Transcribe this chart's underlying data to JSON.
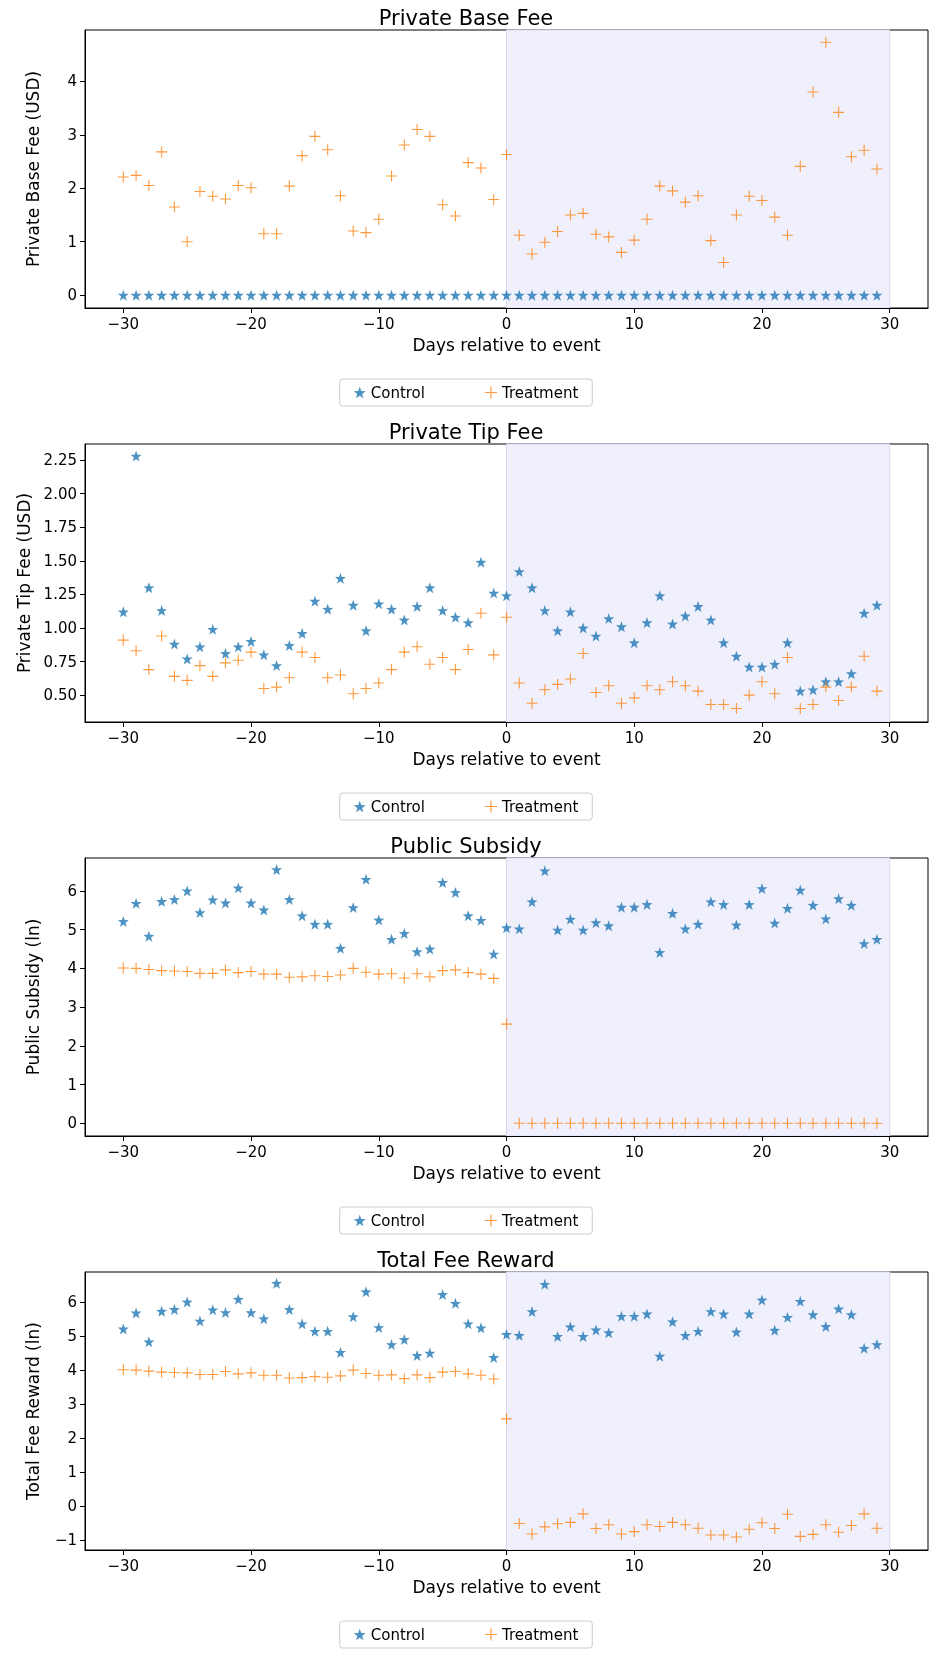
{
  "chart_data": [
    {
      "type": "scatter",
      "title": "Private Base Fee",
      "xlabel": "Days relative to event",
      "ylabel": "Private Base Fee (USD)",
      "xlim": [
        -33,
        33
      ],
      "xticks": [
        {
          "value": -30,
          "label": "−30"
        },
        {
          "value": -20,
          "label": "−20"
        },
        {
          "value": -10,
          "label": "−10"
        },
        0,
        10,
        20,
        30
      ],
      "ylim": [
        -0.24,
        4.96
      ],
      "yticks": [
        0,
        1,
        2,
        3,
        4
      ],
      "grid": false,
      "legend": "bottom",
      "bands": [
        {
          "axis": "x",
          "from": 0,
          "to": 30,
          "color": "#f0f0fc"
        }
      ],
      "x": [
        -30,
        -29,
        -28,
        -27,
        -26,
        -25,
        -24,
        -23,
        -22,
        -21,
        -20,
        -19,
        -18,
        -17,
        -16,
        -15,
        -14,
        -13,
        -12,
        -11,
        -10,
        -9,
        -8,
        -7,
        -6,
        -5,
        -4,
        -3,
        -2,
        -1,
        0,
        1,
        2,
        3,
        4,
        5,
        6,
        7,
        8,
        9,
        10,
        11,
        12,
        13,
        14,
        15,
        16,
        17,
        18,
        19,
        20,
        21,
        22,
        23,
        24,
        25,
        26,
        27,
        28,
        29
      ],
      "series": [
        {
          "name": "Control",
          "color": "#1f77b4",
          "marker": "star",
          "values": [
            0,
            0,
            0,
            0,
            0,
            0,
            0,
            0,
            0,
            0,
            0,
            0,
            0,
            0,
            0,
            0,
            0,
            0,
            0,
            0,
            0,
            0,
            0,
            0,
            0,
            0,
            0,
            0,
            0,
            0,
            0,
            0,
            0,
            0,
            0,
            0,
            0,
            0,
            0,
            0,
            0,
            0,
            0,
            0,
            0,
            0,
            0,
            0,
            0,
            0,
            0,
            0,
            0,
            0,
            0,
            0,
            0,
            0,
            0,
            0
          ]
        },
        {
          "name": "Treatment",
          "color": "#ff7f0e",
          "marker": "cross",
          "values": [
            2.21,
            2.24,
            2.05,
            2.68,
            1.65,
            1.0,
            1.94,
            1.85,
            1.8,
            2.05,
            2.01,
            1.15,
            1.15,
            2.04,
            2.61,
            2.97,
            2.72,
            1.86,
            1.2,
            1.17,
            1.42,
            2.23,
            2.81,
            3.1,
            2.97,
            1.69,
            1.48,
            2.48,
            2.38,
            1.79,
            2.63,
            1.12,
            0.77,
            0.99,
            1.19,
            1.5,
            1.53,
            1.14,
            1.09,
            0.8,
            1.03,
            1.42,
            2.04,
            1.95,
            1.74,
            1.86,
            1.02,
            0.61,
            1.5,
            1.85,
            1.77,
            1.46,
            1.12,
            2.41,
            3.8,
            4.73,
            3.42,
            2.59,
            2.71,
            2.36
          ]
        }
      ]
    },
    {
      "type": "scatter",
      "title": "Private Tip Fee",
      "xlabel": "Days relative to event",
      "ylabel": "Private Tip Fee (USD)",
      "xlim": [
        -33,
        33
      ],
      "xticks": [
        {
          "value": -30,
          "label": "−30"
        },
        {
          "value": -20,
          "label": "−20"
        },
        {
          "value": -10,
          "label": "−10"
        },
        0,
        10,
        20,
        30
      ],
      "ylim": [
        0.3,
        2.37
      ],
      "yticks": [
        {
          "value": 0.5,
          "label": "0.50"
        },
        0.75,
        {
          "value": 1,
          "label": "1.00"
        },
        1.25,
        {
          "value": 1.5,
          "label": "1.50"
        },
        1.75,
        {
          "value": 2,
          "label": "2.00"
        },
        2.25
      ],
      "grid": false,
      "legend": "bottom",
      "bands": [
        {
          "axis": "x",
          "from": 0,
          "to": 30,
          "color": "#f0f0fc"
        }
      ],
      "x": [
        -30,
        -29,
        -28,
        -27,
        -26,
        -25,
        -24,
        -23,
        -22,
        -21,
        -20,
        -19,
        -18,
        -17,
        -16,
        -15,
        -14,
        -13,
        -12,
        -11,
        -10,
        -9,
        -8,
        -7,
        -6,
        -5,
        -4,
        -3,
        -2,
        -1,
        0,
        1,
        2,
        3,
        4,
        5,
        6,
        7,
        8,
        9,
        10,
        11,
        12,
        13,
        14,
        15,
        16,
        17,
        18,
        19,
        20,
        21,
        22,
        23,
        24,
        25,
        26,
        27,
        28,
        29
      ],
      "series": [
        {
          "name": "Control",
          "color": "#1f77b4",
          "marker": "star",
          "values": [
            1.12,
            2.28,
            1.3,
            1.13,
            0.88,
            0.77,
            0.86,
            0.99,
            0.81,
            0.86,
            0.9,
            0.8,
            0.72,
            0.87,
            0.96,
            1.2,
            1.14,
            1.37,
            1.17,
            0.98,
            1.18,
            1.14,
            1.06,
            1.16,
            1.3,
            1.13,
            1.08,
            1.04,
            1.49,
            1.26,
            1.24,
            1.42,
            1.3,
            1.13,
            0.98,
            1.12,
            1.0,
            0.94,
            1.07,
            1.01,
            0.89,
            1.04,
            1.24,
            1.03,
            1.09,
            1.16,
            1.06,
            0.89,
            0.79,
            0.71,
            0.71,
            0.73,
            0.89,
            0.53,
            0.54,
            0.6,
            0.6,
            0.66,
            1.11,
            1.17
          ]
        },
        {
          "name": "Treatment",
          "color": "#ff7f0e",
          "marker": "cross",
          "values": [
            0.91,
            0.83,
            0.69,
            0.94,
            0.64,
            0.61,
            0.72,
            0.64,
            0.74,
            0.76,
            0.82,
            0.55,
            0.56,
            0.63,
            0.82,
            0.78,
            0.63,
            0.65,
            0.51,
            0.55,
            0.59,
            0.69,
            0.82,
            0.86,
            0.73,
            0.78,
            0.69,
            0.84,
            1.11,
            0.8,
            1.08,
            0.59,
            0.44,
            0.54,
            0.58,
            0.62,
            0.81,
            0.52,
            0.57,
            0.44,
            0.48,
            0.57,
            0.54,
            0.6,
            0.57,
            0.53,
            0.43,
            0.43,
            0.4,
            0.5,
            0.6,
            0.51,
            0.78,
            0.4,
            0.43,
            0.56,
            0.46,
            0.56,
            0.79,
            0.53
          ]
        }
      ]
    },
    {
      "type": "scatter",
      "title": "Public Subsidy",
      "xlabel": "Days relative to event",
      "ylabel": "Public Subsidy (ln)",
      "xlim": [
        -33,
        33
      ],
      "xticks": [
        {
          "value": -30,
          "label": "−30"
        },
        {
          "value": -20,
          "label": "−20"
        },
        {
          "value": -10,
          "label": "−10"
        },
        0,
        10,
        20,
        30
      ],
      "ylim": [
        -0.33,
        6.85
      ],
      "yticks": [
        0,
        1,
        2,
        3,
        4,
        5,
        6
      ],
      "grid": false,
      "legend": "bottom",
      "bands": [
        {
          "axis": "x",
          "from": 0,
          "to": 30,
          "color": "#f0f0fc"
        }
      ],
      "x": [
        -30,
        -29,
        -28,
        -27,
        -26,
        -25,
        -24,
        -23,
        -22,
        -21,
        -20,
        -19,
        -18,
        -17,
        -16,
        -15,
        -14,
        -13,
        -12,
        -11,
        -10,
        -9,
        -8,
        -7,
        -6,
        -5,
        -4,
        -3,
        -2,
        -1,
        0,
        1,
        2,
        3,
        4,
        5,
        6,
        7,
        8,
        9,
        10,
        11,
        12,
        13,
        14,
        15,
        16,
        17,
        18,
        19,
        20,
        21,
        22,
        23,
        24,
        25,
        26,
        27,
        28,
        29
      ],
      "series": [
        {
          "name": "Control",
          "color": "#1f77b4",
          "marker": "star",
          "values": [
            5.21,
            5.68,
            4.83,
            5.73,
            5.78,
            6.0,
            5.44,
            5.77,
            5.69,
            6.08,
            5.69,
            5.51,
            6.55,
            5.78,
            5.36,
            5.14,
            5.14,
            4.52,
            5.57,
            6.3,
            5.25,
            4.75,
            4.9,
            4.43,
            4.5,
            6.22,
            5.96,
            5.36,
            5.24,
            4.37,
            5.05,
            5.02,
            5.72,
            6.52,
            4.99,
            5.27,
            4.99,
            5.18,
            5.1,
            5.58,
            5.58,
            5.65,
            4.41,
            5.42,
            5.02,
            5.14,
            5.72,
            5.65,
            5.12,
            5.65,
            6.06,
            5.17,
            5.55,
            6.02,
            5.63,
            5.28,
            5.8,
            5.63,
            4.64,
            4.75
          ]
        },
        {
          "name": "Treatment",
          "color": "#ff7f0e",
          "marker": "cross",
          "values": [
            4.01,
            4.0,
            3.97,
            3.94,
            3.93,
            3.92,
            3.87,
            3.87,
            3.96,
            3.89,
            3.92,
            3.85,
            3.85,
            3.77,
            3.78,
            3.81,
            3.79,
            3.83,
            4.0,
            3.9,
            3.85,
            3.86,
            3.75,
            3.86,
            3.78,
            3.94,
            3.96,
            3.89,
            3.85,
            3.74,
            2.56,
            0,
            0,
            0,
            0,
            0,
            0,
            0,
            0,
            0,
            0,
            0,
            0,
            0,
            0,
            0,
            0,
            0,
            0,
            0,
            0,
            0,
            0,
            0,
            0,
            0,
            0,
            0,
            0,
            0
          ]
        }
      ]
    },
    {
      "type": "scatter",
      "title": "Total Fee Reward",
      "xlabel": "Days relative to event",
      "ylabel": "Total Fee Reward (ln)",
      "xlim": [
        -33,
        33
      ],
      "xticks": [
        {
          "value": -30,
          "label": "−30"
        },
        {
          "value": -20,
          "label": "−20"
        },
        {
          "value": -10,
          "label": "−10"
        },
        0,
        10,
        20,
        30
      ],
      "ylim": [
        -1.28,
        6.88
      ],
      "yticks": [
        {
          "value": -1,
          "label": "−1"
        },
        0,
        1,
        2,
        3,
        4,
        5,
        6
      ],
      "grid": false,
      "legend": "bottom",
      "bands": [
        {
          "axis": "x",
          "from": 0,
          "to": 30,
          "color": "#f0f0fc"
        }
      ],
      "x": [
        -30,
        -29,
        -28,
        -27,
        -26,
        -25,
        -24,
        -23,
        -22,
        -21,
        -20,
        -19,
        -18,
        -17,
        -16,
        -15,
        -14,
        -13,
        -12,
        -11,
        -10,
        -9,
        -8,
        -7,
        -6,
        -5,
        -4,
        -3,
        -2,
        -1,
        0,
        1,
        2,
        3,
        4,
        5,
        6,
        7,
        8,
        9,
        10,
        11,
        12,
        13,
        14,
        15,
        16,
        17,
        18,
        19,
        20,
        21,
        22,
        23,
        24,
        25,
        26,
        27,
        28,
        29
      ],
      "series": [
        {
          "name": "Control",
          "color": "#1f77b4",
          "marker": "star",
          "values": [
            5.21,
            5.68,
            4.83,
            5.73,
            5.78,
            6.0,
            5.44,
            5.77,
            5.69,
            6.08,
            5.69,
            5.51,
            6.55,
            5.78,
            5.36,
            5.14,
            5.14,
            4.52,
            5.57,
            6.3,
            5.25,
            4.75,
            4.9,
            4.43,
            4.5,
            6.22,
            5.96,
            5.36,
            5.24,
            4.37,
            5.05,
            5.02,
            5.72,
            6.52,
            4.99,
            5.27,
            4.99,
            5.18,
            5.1,
            5.58,
            5.58,
            5.65,
            4.41,
            5.42,
            5.02,
            5.14,
            5.72,
            5.65,
            5.12,
            5.65,
            6.06,
            5.17,
            5.55,
            6.02,
            5.63,
            5.28,
            5.8,
            5.63,
            4.64,
            4.75
          ]
        },
        {
          "name": "Treatment",
          "color": "#ff7f0e",
          "marker": "cross",
          "values": [
            4.01,
            4.0,
            3.97,
            3.94,
            3.93,
            3.92,
            3.87,
            3.87,
            3.96,
            3.89,
            3.92,
            3.85,
            3.85,
            3.77,
            3.78,
            3.81,
            3.79,
            3.83,
            4.0,
            3.9,
            3.85,
            3.86,
            3.75,
            3.86,
            3.78,
            3.94,
            3.96,
            3.89,
            3.85,
            3.74,
            2.57,
            -0.5,
            -0.81,
            -0.6,
            -0.51,
            -0.47,
            -0.22,
            -0.65,
            -0.54,
            -0.81,
            -0.74,
            -0.54,
            -0.59,
            -0.47,
            -0.54,
            -0.64,
            -0.84,
            -0.84,
            -0.9,
            -0.67,
            -0.48,
            -0.65,
            -0.23,
            -0.88,
            -0.82,
            -0.54,
            -0.76,
            -0.56,
            -0.22,
            -0.64
          ]
        }
      ]
    }
  ]
}
